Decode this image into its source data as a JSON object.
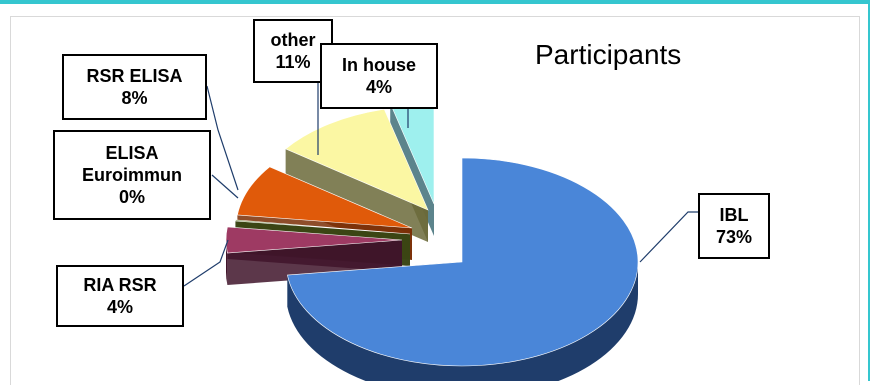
{
  "chart_data": {
    "type": "pie",
    "style": "3d-exploded",
    "title": "Participants",
    "slices": [
      {
        "label": "IBL",
        "value": 73,
        "value_label": "73%",
        "color": "#4a86d8"
      },
      {
        "label": "RIA RSR",
        "value": 4,
        "value_label": "4%",
        "color": "#9e3a63"
      },
      {
        "label": "ELISA Euroimmun",
        "value": 0,
        "value_label": "0%",
        "color": "#6b7f2e"
      },
      {
        "label": "RSR ELISA",
        "value": 8,
        "value_label": "8%",
        "color": "#e05a0a"
      },
      {
        "label": "other",
        "value": 11,
        "value_label": "11%",
        "color": "#fbf7a3"
      },
      {
        "label": "In house",
        "value": 4,
        "value_label": "4%",
        "color": "#9ef0ee"
      }
    ]
  }
}
